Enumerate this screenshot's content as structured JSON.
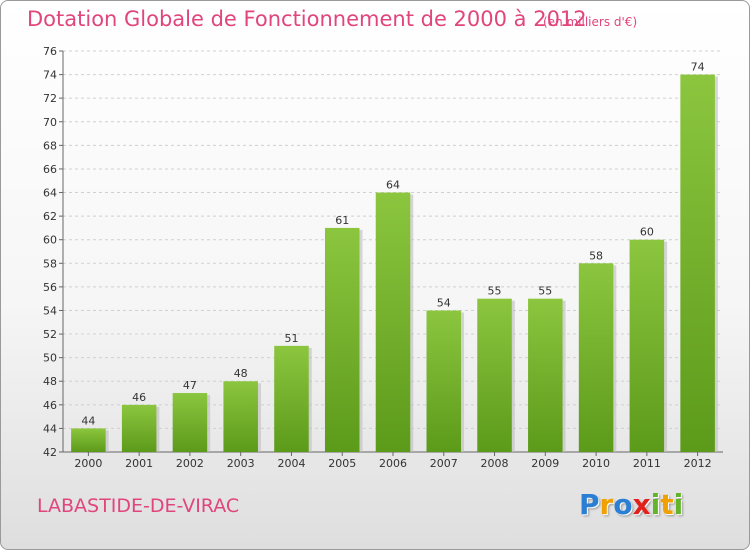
{
  "header": {
    "title": "Dotation Globale de Fonctionnement de 2000 à 2012",
    "subtitle": "(en milliers d'€)"
  },
  "footer": {
    "commune": "LABASTIDE-DE-VIRAC",
    "logo_letters": [
      "P",
      "r",
      "o",
      "x",
      "i",
      "t",
      "i"
    ],
    "logo_colors": [
      "#2a7fd4",
      "#f0a000",
      "#2a7fd4",
      "#e2211c",
      "#62b42a",
      "#f0a000",
      "#62b42a"
    ]
  },
  "chart_data": {
    "type": "bar",
    "categories": [
      "2000",
      "2001",
      "2002",
      "2003",
      "2004",
      "2005",
      "2006",
      "2007",
      "2008",
      "2009",
      "2010",
      "2011",
      "2012"
    ],
    "values": [
      44,
      46,
      47,
      48,
      51,
      61,
      64,
      54,
      55,
      55,
      58,
      60,
      74
    ],
    "data_labels": [
      "44",
      "46",
      "47",
      "48",
      "51",
      "61",
      "64",
      "54",
      "55",
      "55",
      "58",
      "60",
      "74"
    ],
    "y_ticks": [
      "42",
      "44",
      "46",
      "48",
      "50",
      "52",
      "54",
      "56",
      "58",
      "60",
      "62",
      "64",
      "66",
      "68",
      "70",
      "72",
      "74",
      "76"
    ],
    "ylim": [
      42,
      76
    ],
    "grid": true,
    "bar_color": "#8cc63f",
    "bar_color_dark": "#5c9a1a"
  }
}
